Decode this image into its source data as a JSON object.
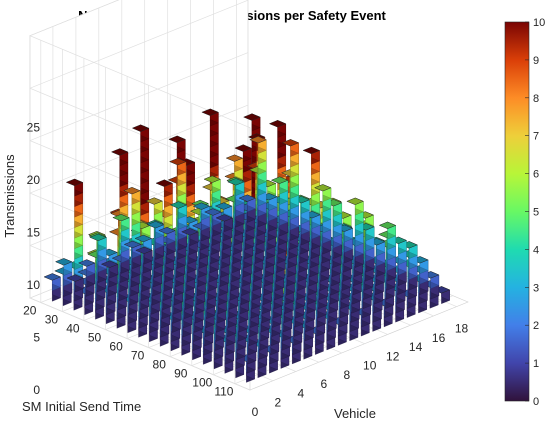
{
  "chart_data": {
    "type": "bar3d",
    "title": "Number of Safety Transmissions per Safety Event",
    "xlabel": "Vehicle",
    "ylabel": "SM Initial Send Time",
    "zlabel": "Transmissions",
    "x_ticks": [
      "0",
      "2",
      "4",
      "6",
      "8",
      "10",
      "12",
      "14",
      "16",
      "18"
    ],
    "y_ticks": [
      "20",
      "30",
      "40",
      "50",
      "60",
      "70",
      "80",
      "90",
      "100",
      "110"
    ],
    "z_ticks": [
      "0",
      "5",
      "10",
      "15",
      "20",
      "25"
    ],
    "xlim": [
      0,
      19
    ],
    "ylim": [
      15,
      117
    ],
    "zlim": [
      0,
      25
    ],
    "vehicles": [
      1,
      2,
      3,
      4,
      5,
      6,
      7,
      8,
      9,
      10,
      11,
      12,
      13,
      14,
      15,
      16,
      17,
      18
    ],
    "send_times": [
      20,
      25,
      30,
      35,
      40,
      45,
      50,
      55,
      60,
      65,
      70,
      75,
      80,
      85,
      90,
      95,
      100,
      105,
      110
    ],
    "values": [
      [
        2,
        3,
        1,
        2,
        4,
        1,
        5,
        2,
        1,
        3,
        2,
        4,
        1,
        3,
        2,
        1,
        4,
        2
      ],
      [
        3,
        11,
        2,
        5,
        3,
        2,
        8,
        3,
        4,
        2,
        9,
        3,
        2,
        6,
        3,
        5,
        2,
        8
      ],
      [
        4,
        2,
        6,
        3,
        13,
        4,
        3,
        7,
        2,
        12,
        3,
        5,
        4,
        3,
        8,
        2,
        6,
        3
      ],
      [
        2,
        5,
        3,
        8,
        3,
        6,
        4,
        3,
        9,
        4,
        2,
        7,
        3,
        5,
        4,
        10,
        3,
        5
      ],
      [
        6,
        3,
        9,
        4,
        7,
        3,
        10,
        5,
        3,
        6,
        15,
        3,
        8,
        4,
        3,
        6,
        4,
        9
      ],
      [
        3,
        8,
        4,
        17,
        4,
        8,
        3,
        12,
        6,
        3,
        7,
        4,
        3,
        9,
        5,
        3,
        7,
        4
      ],
      [
        5,
        4,
        7,
        3,
        6,
        4,
        9,
        3,
        5,
        8,
        3,
        12,
        5,
        3,
        13,
        4,
        5,
        3
      ],
      [
        3,
        9,
        4,
        6,
        3,
        10,
        4,
        6,
        3,
        4,
        9,
        3,
        7,
        4,
        6,
        3,
        10,
        6
      ],
      [
        8,
        3,
        6,
        4,
        8,
        3,
        5,
        4,
        7,
        3,
        5,
        6,
        3,
        9,
        3,
        6,
        3,
        5
      ],
      [
        4,
        6,
        3,
        7,
        4,
        5,
        3,
        8,
        4,
        6,
        3,
        4,
        6,
        3,
        5,
        4,
        6,
        3
      ],
      [
        6,
        4,
        8,
        3,
        5,
        4,
        7,
        3,
        18,
        4,
        7,
        3,
        5,
        4,
        7,
        3,
        4,
        6
      ],
      [
        3,
        7,
        4,
        5,
        3,
        6,
        4,
        5,
        3,
        6,
        4,
        6,
        3,
        5,
        4,
        6,
        3,
        4
      ],
      [
        5,
        3,
        6,
        4,
        7,
        3,
        5,
        4,
        6,
        3,
        5,
        4,
        6,
        3,
        5,
        4,
        6,
        3
      ],
      [
        4,
        6,
        3,
        5,
        4,
        9,
        3,
        6,
        4,
        5,
        3,
        6,
        4,
        5,
        3,
        6,
        4,
        5
      ],
      [
        3,
        4,
        7,
        3,
        5,
        3,
        6,
        3,
        5,
        4,
        6,
        3,
        5,
        4,
        6,
        3,
        5,
        4
      ],
      [
        5,
        3,
        4,
        15,
        3,
        4,
        3,
        5,
        3,
        6,
        3,
        5,
        3,
        4,
        3,
        5,
        3,
        4
      ],
      [
        3,
        4,
        3,
        4,
        3,
        11,
        4,
        3,
        4,
        3,
        4,
        3,
        4,
        3,
        4,
        3,
        4,
        3
      ],
      [
        4,
        3,
        4,
        3,
        4,
        3,
        3,
        4,
        3,
        4,
        3,
        4,
        3,
        4,
        3,
        4,
        3,
        2
      ],
      [
        2,
        3,
        2,
        3,
        2,
        3,
        2,
        3,
        2,
        3,
        2,
        3,
        2,
        3,
        2,
        3,
        2,
        1
      ]
    ],
    "colorbar": {
      "colormap": "turbo",
      "ticks": [
        "0",
        "1",
        "2",
        "3",
        "4",
        "5",
        "6",
        "7",
        "8",
        "9",
        "10"
      ],
      "range": [
        0,
        10
      ]
    },
    "grid": true
  }
}
